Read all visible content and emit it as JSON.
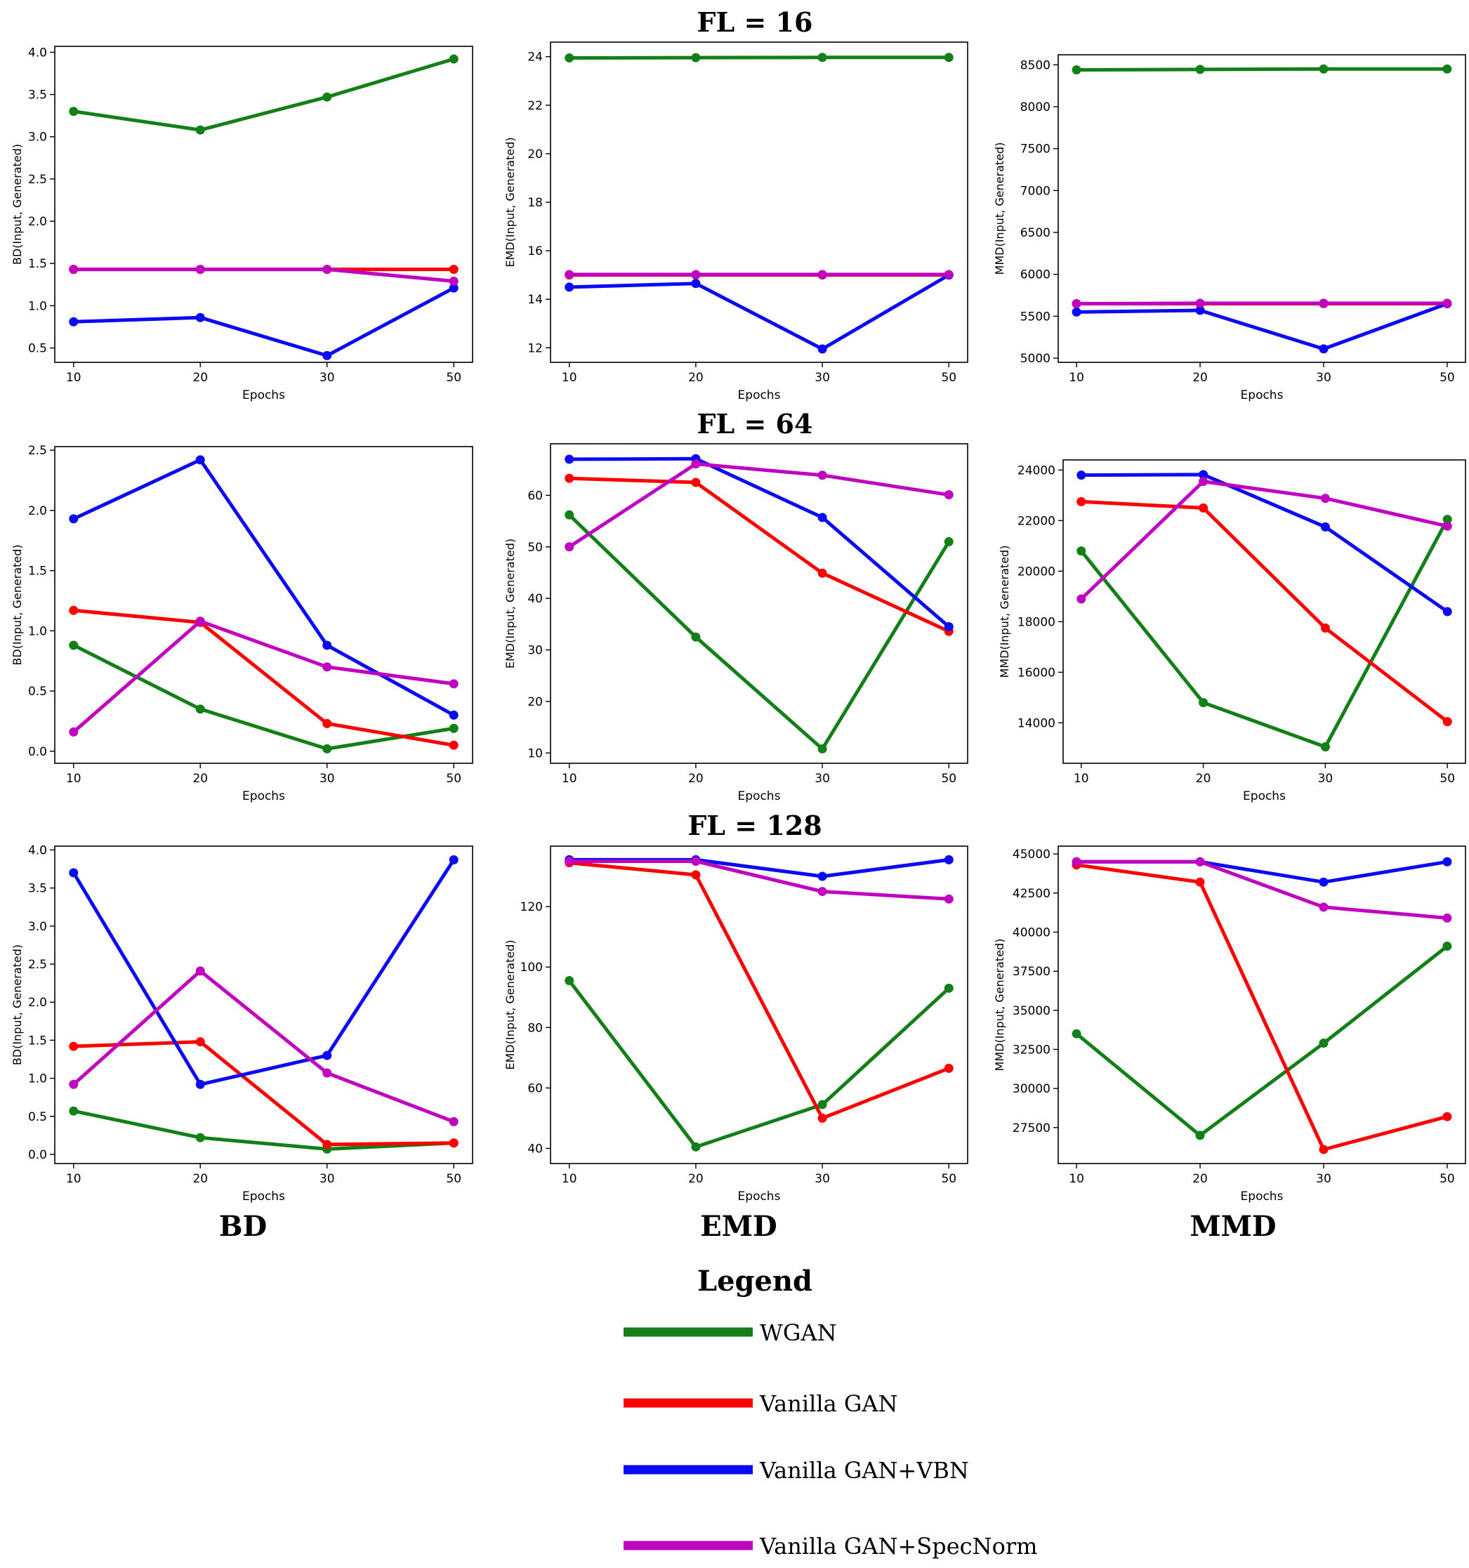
{
  "row_titles": [
    "FL = 16",
    "FL = 64",
    "FL = 128"
  ],
  "column_titles": [
    "BD",
    "EMD",
    "MMD"
  ],
  "legend": {
    "title": "Legend",
    "entries": [
      {
        "label": "WGAN",
        "color": "#137f17"
      },
      {
        "label": "Vanilla GAN",
        "color": "#ff0000"
      },
      {
        "label": "Vanilla GAN+VBN",
        "color": "#0a0af5"
      },
      {
        "label": "Vanilla GAN+SpecNorm",
        "color": "#c000c0"
      }
    ]
  },
  "colors": {
    "wgan": "#137f17",
    "vanilla": "#ff0000",
    "vbn": "#0a0af5",
    "specnorm": "#c000c0"
  },
  "chart_data": [
    {
      "id": "fl16-bd",
      "type": "line",
      "row": "FL = 16",
      "metric": "BD",
      "xlabel": "Epochs",
      "ylabel": "BD(Input, Generated)",
      "x": [
        10,
        20,
        30,
        50
      ],
      "ylim": [
        0.33,
        4.07
      ],
      "yticks": [
        0.5,
        1.0,
        1.5,
        2.0,
        2.5,
        3.0,
        3.5,
        4.0
      ],
      "ytick_labels": [
        "0.5",
        "1.0",
        "1.5",
        "2.0",
        "2.5",
        "3.0",
        "3.5",
        "4.0"
      ],
      "series": [
        {
          "name": "WGAN",
          "values": [
            3.3,
            3.08,
            3.47,
            3.92
          ]
        },
        {
          "name": "Vanilla GAN",
          "values": [
            1.43,
            1.43,
            1.43,
            1.43
          ]
        },
        {
          "name": "Vanilla GAN+VBN",
          "values": [
            0.81,
            0.86,
            0.41,
            1.21
          ]
        },
        {
          "name": "Vanilla GAN+SpecNorm",
          "values": [
            1.43,
            1.43,
            1.43,
            1.29
          ]
        }
      ]
    },
    {
      "id": "fl16-emd",
      "type": "line",
      "row": "FL = 16",
      "metric": "EMD",
      "xlabel": "Epochs",
      "ylabel": "EMD(Input, Generated)",
      "x": [
        10,
        20,
        30,
        50
      ],
      "ylim": [
        11.4,
        24.6
      ],
      "yticks": [
        12,
        14,
        16,
        18,
        20,
        22,
        24
      ],
      "ytick_labels": [
        "12",
        "14",
        "16",
        "18",
        "20",
        "22",
        "24"
      ],
      "series": [
        {
          "name": "WGAN",
          "values": [
            23.95,
            23.96,
            23.97,
            23.97
          ]
        },
        {
          "name": "Vanilla GAN",
          "values": [
            15.0,
            15.0,
            15.0,
            15.0
          ]
        },
        {
          "name": "Vanilla GAN+VBN",
          "values": [
            14.5,
            14.65,
            11.95,
            15.0
          ]
        },
        {
          "name": "Vanilla GAN+SpecNorm",
          "values": [
            15.02,
            15.02,
            15.02,
            15.02
          ]
        }
      ]
    },
    {
      "id": "fl16-mmd",
      "type": "line",
      "row": "FL = 16",
      "metric": "MMD",
      "xlabel": "Epochs",
      "ylabel": "MMD(Input, Generated)",
      "x": [
        10,
        20,
        30,
        50
      ],
      "ylim": [
        4950,
        8620
      ],
      "yticks": [
        5000,
        5500,
        6000,
        6500,
        7000,
        7500,
        8000,
        8500
      ],
      "ytick_labels": [
        "5000",
        "5500",
        "6000",
        "6500",
        "7000",
        "7500",
        "8000",
        "8500"
      ],
      "series": [
        {
          "name": "WGAN",
          "values": [
            8440,
            8445,
            8450,
            8450
          ]
        },
        {
          "name": "Vanilla GAN",
          "values": [
            5650,
            5650,
            5650,
            5650
          ]
        },
        {
          "name": "Vanilla GAN+VBN",
          "values": [
            5550,
            5570,
            5110,
            5650
          ]
        },
        {
          "name": "Vanilla GAN+SpecNorm",
          "values": [
            5650,
            5655,
            5655,
            5655
          ]
        }
      ]
    },
    {
      "id": "fl64-bd",
      "type": "line",
      "row": "FL = 64",
      "metric": "BD",
      "xlabel": "Epochs",
      "ylabel": "BD(Input, Generated)",
      "x": [
        10,
        20,
        30,
        50
      ],
      "ylim": [
        -0.1,
        2.53
      ],
      "yticks": [
        0.0,
        0.5,
        1.0,
        1.5,
        2.0,
        2.5
      ],
      "ytick_labels": [
        "0.0",
        "0.5",
        "1.0",
        "1.5",
        "2.0",
        "2.5"
      ],
      "series": [
        {
          "name": "WGAN",
          "values": [
            0.88,
            0.35,
            0.02,
            0.19
          ]
        },
        {
          "name": "Vanilla GAN",
          "values": [
            1.17,
            1.07,
            0.23,
            0.05
          ]
        },
        {
          "name": "Vanilla GAN+VBN",
          "values": [
            1.93,
            2.42,
            0.88,
            0.3
          ]
        },
        {
          "name": "Vanilla GAN+SpecNorm",
          "values": [
            0.16,
            1.08,
            0.7,
            0.56
          ]
        }
      ]
    },
    {
      "id": "fl64-emd",
      "type": "line",
      "row": "FL = 64",
      "metric": "EMD",
      "xlabel": "Epochs",
      "ylabel": "EMD(Input, Generated)",
      "x": [
        10,
        20,
        30,
        50
      ],
      "ylim": [
        8,
        70
      ],
      "yticks": [
        10,
        20,
        30,
        40,
        50,
        60
      ],
      "ytick_labels": [
        "10",
        "20",
        "30",
        "40",
        "50",
        "60"
      ],
      "series": [
        {
          "name": "WGAN",
          "values": [
            56.2,
            32.5,
            10.8,
            51.0
          ]
        },
        {
          "name": "Vanilla GAN",
          "values": [
            63.3,
            62.5,
            44.9,
            33.6
          ]
        },
        {
          "name": "Vanilla GAN+VBN",
          "values": [
            67.0,
            67.1,
            55.7,
            34.5
          ]
        },
        {
          "name": "Vanilla GAN+SpecNorm",
          "values": [
            50.0,
            66.1,
            63.9,
            60.1
          ]
        }
      ]
    },
    {
      "id": "fl64-mmd",
      "type": "line",
      "row": "FL = 64",
      "metric": "MMD",
      "xlabel": "Epochs",
      "ylabel": "MMD(Input, Generated)",
      "x": [
        10,
        20,
        30,
        50
      ],
      "ylim": [
        12400,
        24400
      ],
      "yticks": [
        14000,
        16000,
        18000,
        20000,
        22000,
        24000
      ],
      "ytick_labels": [
        "14000",
        "16000",
        "18000",
        "20000",
        "22000",
        "24000"
      ],
      "series": [
        {
          "name": "WGAN",
          "values": [
            20800,
            14800,
            13050,
            22050
          ]
        },
        {
          "name": "Vanilla GAN",
          "values": [
            22750,
            22500,
            17750,
            14050
          ]
        },
        {
          "name": "Vanilla GAN+VBN",
          "values": [
            23800,
            23820,
            21750,
            18400
          ]
        },
        {
          "name": "Vanilla GAN+SpecNorm",
          "values": [
            18900,
            23550,
            22880,
            21780
          ]
        }
      ]
    },
    {
      "id": "fl128-bd",
      "type": "line",
      "row": "FL = 128",
      "metric": "BD",
      "xlabel": "Epochs",
      "ylabel": "BD(Input, Generated)",
      "x": [
        10,
        20,
        30,
        50
      ],
      "ylim": [
        -0.12,
        4.05
      ],
      "yticks": [
        0.0,
        0.5,
        1.0,
        1.5,
        2.0,
        2.5,
        3.0,
        3.5,
        4.0
      ],
      "ytick_labels": [
        "0.0",
        "0.5",
        "1.0",
        "1.5",
        "2.0",
        "2.5",
        "3.0",
        "3.5",
        "4.0"
      ],
      "series": [
        {
          "name": "WGAN",
          "values": [
            0.57,
            0.22,
            0.07,
            0.15
          ]
        },
        {
          "name": "Vanilla GAN",
          "values": [
            1.42,
            1.48,
            0.13,
            0.15
          ]
        },
        {
          "name": "Vanilla GAN+VBN",
          "values": [
            3.7,
            0.92,
            1.3,
            3.87
          ]
        },
        {
          "name": "Vanilla GAN+SpecNorm",
          "values": [
            0.92,
            2.41,
            1.07,
            0.43
          ]
        }
      ]
    },
    {
      "id": "fl128-emd",
      "type": "line",
      "row": "FL = 128",
      "metric": "EMD",
      "xlabel": "Epochs",
      "ylabel": "EMD(Input, Generated)",
      "x": [
        10,
        20,
        30,
        50
      ],
      "ylim": [
        35,
        140
      ],
      "yticks": [
        40,
        60,
        80,
        100,
        120
      ],
      "ytick_labels": [
        "40",
        "60",
        "80",
        "100",
        "120"
      ],
      "series": [
        {
          "name": "WGAN",
          "values": [
            95.5,
            40.5,
            54.5,
            93.0
          ]
        },
        {
          "name": "Vanilla GAN",
          "values": [
            134.5,
            130.5,
            50.0,
            66.5
          ]
        },
        {
          "name": "Vanilla GAN+VBN",
          "values": [
            135.5,
            135.5,
            130.0,
            135.5
          ]
        },
        {
          "name": "Vanilla GAN+SpecNorm",
          "values": [
            135.0,
            135.0,
            125.0,
            122.5
          ]
        }
      ]
    },
    {
      "id": "fl128-mmd",
      "type": "line",
      "row": "FL = 128",
      "metric": "MMD",
      "xlabel": "Epochs",
      "ylabel": "MMD(Input, Generated)",
      "x": [
        10,
        20,
        30,
        50
      ],
      "ylim": [
        25200,
        45500
      ],
      "yticks": [
        27500,
        30000,
        32500,
        35000,
        37500,
        40000,
        42500,
        45000
      ],
      "ytick_labels": [
        "27500",
        "30000",
        "32500",
        "35000",
        "37500",
        "40000",
        "42500",
        "45000"
      ],
      "series": [
        {
          "name": "WGAN",
          "values": [
            33500,
            27000,
            32900,
            39100
          ]
        },
        {
          "name": "Vanilla GAN",
          "values": [
            44300,
            43200,
            26100,
            28200
          ]
        },
        {
          "name": "Vanilla GAN+VBN",
          "values": [
            44500,
            44500,
            43200,
            44500
          ]
        },
        {
          "name": "Vanilla GAN+SpecNorm",
          "values": [
            44500,
            44500,
            41600,
            40900
          ]
        }
      ]
    }
  ]
}
